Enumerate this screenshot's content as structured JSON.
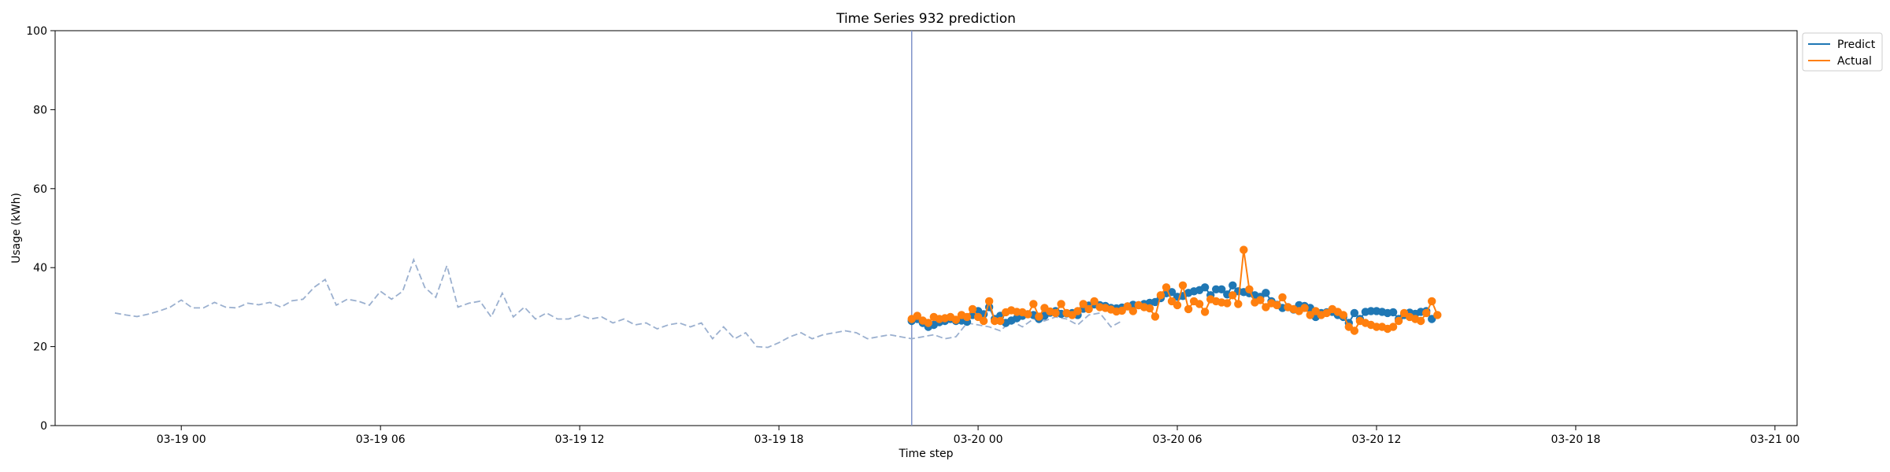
{
  "chart_data": {
    "type": "line",
    "title": "Time Series 932 prediction",
    "xlabel": "Time step",
    "ylabel": "Usage (kWh)",
    "ylim": [
      0,
      100
    ],
    "yticks": [
      0,
      20,
      40,
      60,
      80,
      100
    ],
    "xlim": [
      "2024-03-18 20:12",
      "2024-03-21 00:40"
    ],
    "xticks": [
      "03-19 00",
      "03-19 06",
      "03-19 12",
      "03-19 18",
      "03-20 00",
      "03-20 06",
      "03-20 12",
      "03-20 18",
      "03-21 00"
    ],
    "forecast_start": "2024-03-19 22:00",
    "legend": {
      "placement": "outside-top-right",
      "entries": [
        "Predict",
        "Actual"
      ]
    },
    "series": [
      {
        "name": "",
        "style": "dashed",
        "color": "#9bb0cf",
        "start": "2024-03-18 22:00",
        "interval_minutes": 20,
        "values": [
          28.5,
          28.0,
          27.6,
          28.2,
          29.0,
          30.0,
          31.8,
          29.8,
          29.8,
          31.2,
          30.0,
          29.8,
          31.0,
          30.6,
          31.2,
          30.0,
          31.6,
          32.0,
          35.0,
          37.0,
          30.5,
          32.0,
          31.5,
          30.5,
          34.0,
          32.0,
          34.0,
          42.0,
          35.0,
          32.5,
          40.5,
          30.0,
          31.0,
          31.5,
          27.5,
          33.5,
          27.5,
          30.0,
          27.0,
          28.5,
          27.0,
          27.0,
          28.0,
          27.0,
          27.5,
          26.0,
          27.0,
          25.5,
          26.0,
          24.5,
          25.5,
          26.0,
          25.0,
          26.0,
          22.0,
          25.0,
          22.0,
          23.5,
          20.0,
          19.8,
          21.0,
          22.5,
          23.5,
          22.0,
          23.0,
          23.5,
          24.0,
          23.5,
          22.0,
          22.5,
          23.0,
          22.5,
          22.0,
          22.5,
          23.0,
          22.0,
          22.5,
          26.0,
          25.5,
          25.0,
          24.0,
          26.5,
          25.0,
          27.0,
          26.5,
          27.5,
          27.0,
          25.5,
          28.0,
          28.5,
          25.0,
          26.5
        ]
      },
      {
        "name": "Predict",
        "color": "#1f77b4",
        "start": "2024-03-19 22:00",
        "interval_minutes": 10,
        "values": [
          26.5,
          27.0,
          26.0,
          25.0,
          25.5,
          26.2,
          26.5,
          27.0,
          26.5,
          26.6,
          26.3,
          28.0,
          29.0,
          28.2,
          30.0,
          27.0,
          27.8,
          26.0,
          26.6,
          27.2,
          27.8,
          28.2,
          28.0,
          27.0,
          27.8,
          28.6,
          29.0,
          28.3,
          28.4,
          28.5,
          28.0,
          29.6,
          30.4,
          30.7,
          30.5,
          30.3,
          29.8,
          29.7,
          29.9,
          30.2,
          30.6,
          30.5,
          30.8,
          31.1,
          31.3,
          32.3,
          33.5,
          33.8,
          32.6,
          32.8,
          33.6,
          34.0,
          34.3,
          35.0,
          33.0,
          34.5,
          34.5,
          33.2,
          35.5,
          34.0,
          33.8,
          33.5,
          33.0,
          32.6,
          33.6,
          31.5,
          30.6,
          29.8,
          30.0,
          29.4,
          30.5,
          30.3,
          29.8,
          27.5,
          28.5,
          28.7,
          28.8,
          28.0,
          27.5,
          26.0,
          28.5,
          27.0,
          28.8,
          29.0,
          29.0,
          28.8,
          28.5,
          28.7,
          27.0,
          28.0,
          28.6,
          28.3,
          28.8,
          29.0,
          27.0
        ]
      },
      {
        "name": "Actual",
        "color": "#ff7f0e",
        "start": "2024-03-19 22:00",
        "interval_minutes": 10,
        "values": [
          27.0,
          27.8,
          26.6,
          26.0,
          27.5,
          27.0,
          27.2,
          27.5,
          26.8,
          28.0,
          27.5,
          29.5,
          27.5,
          26.5,
          31.5,
          26.5,
          26.5,
          28.7,
          29.2,
          28.8,
          28.7,
          28.2,
          30.8,
          27.6,
          29.8,
          28.9,
          28.5,
          30.8,
          28.5,
          28.0,
          29.0,
          30.8,
          29.5,
          31.5,
          30.0,
          29.8,
          29.4,
          28.9,
          29.1,
          30.2,
          29.0,
          30.5,
          30.0,
          29.7,
          27.6,
          33.0,
          35.0,
          31.5,
          30.5,
          35.5,
          29.5,
          31.5,
          30.8,
          28.8,
          32.0,
          31.5,
          31.2,
          31.0,
          33.0,
          30.8,
          44.5,
          34.5,
          31.2,
          31.8,
          30.0,
          31.0,
          30.5,
          32.5,
          30.0,
          29.5,
          29.0,
          29.8,
          28.0,
          29.0,
          28.0,
          28.5,
          29.5,
          28.8,
          28.0,
          25.0,
          24.0,
          26.5,
          26.0,
          25.5,
          25.0,
          25.0,
          24.5,
          25.0,
          26.5,
          28.5,
          27.5,
          27.0,
          26.5,
          28.5,
          31.5,
          28.0
        ]
      }
    ]
  }
}
